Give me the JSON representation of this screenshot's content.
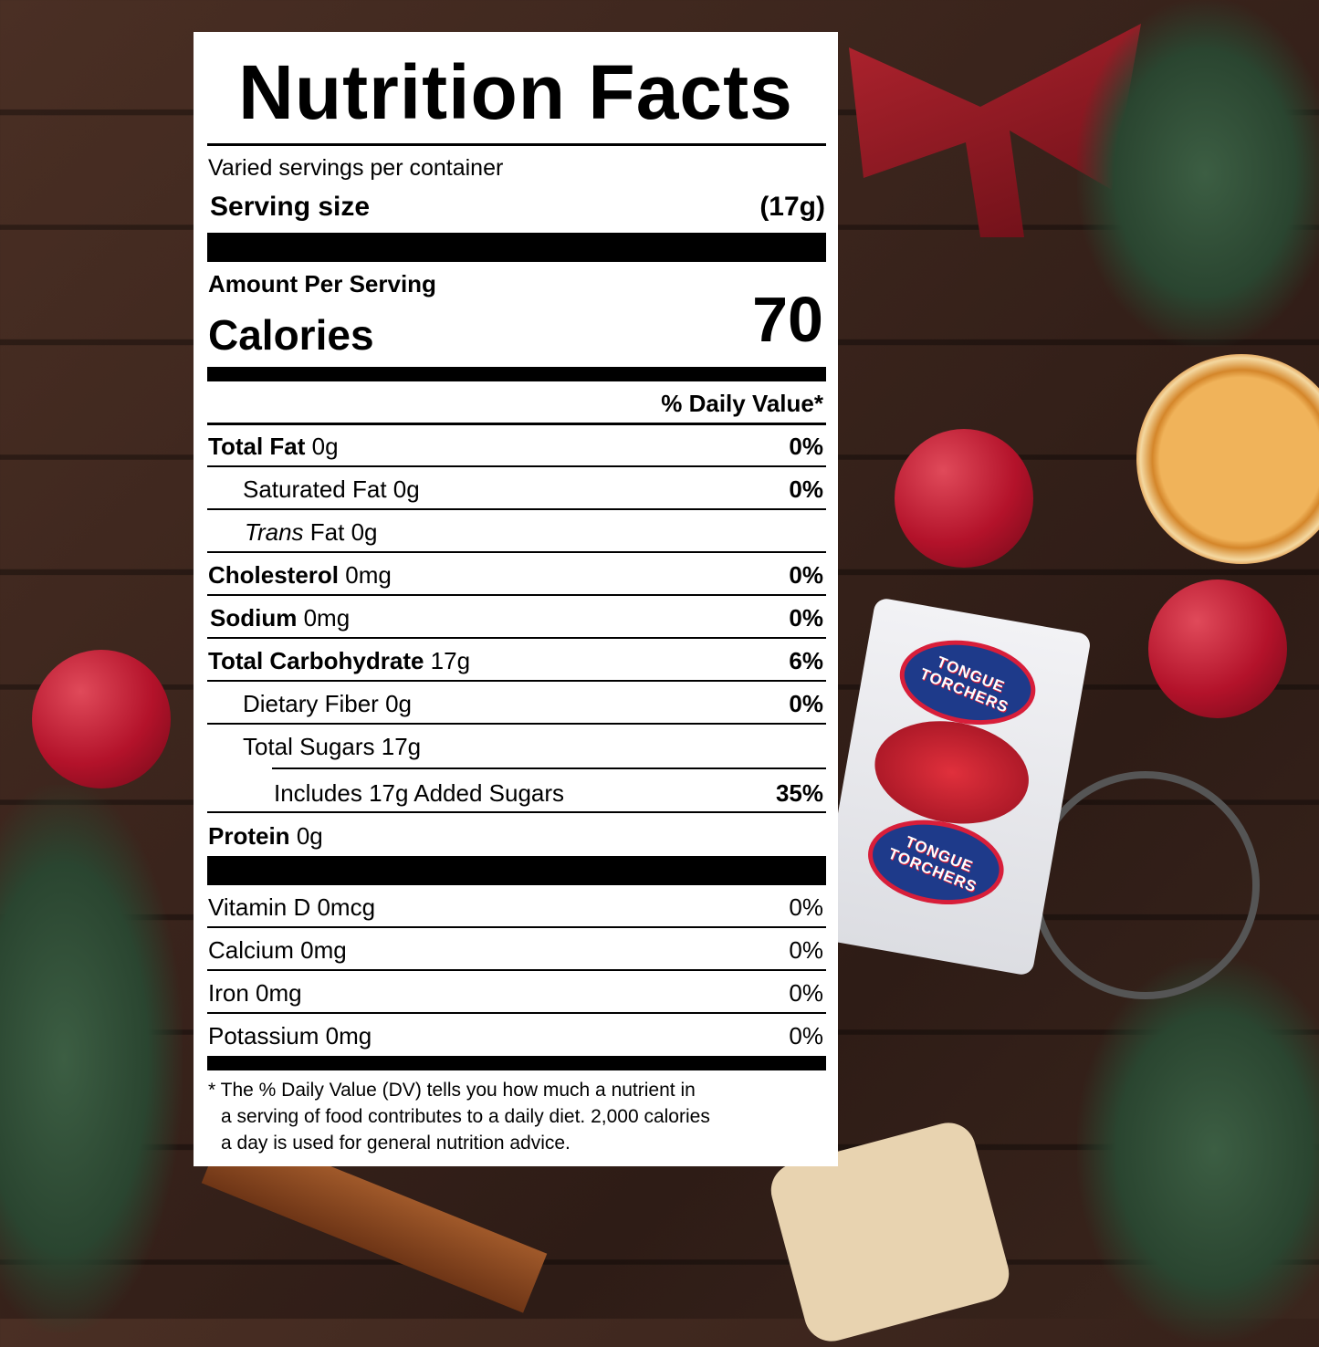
{
  "label": {
    "title": "Nutrition Facts",
    "servings": "Varied servings per container",
    "serving_size_label": "Serving size",
    "serving_size_value": "(17g)",
    "amount_per_serving": "Amount Per Serving",
    "calories_label": "Calories",
    "calories_value": "70",
    "dv_header": "% Daily Value*",
    "rows": [
      {
        "label": "Total Fat",
        "amount": "0g",
        "dv": "0%"
      },
      {
        "label": "Saturated Fat",
        "amount": "0g",
        "dv": "0%"
      },
      {
        "label_italic": "Trans",
        "label": "Fat",
        "amount": "0g",
        "dv": ""
      },
      {
        "label": "Cholesterol",
        "amount": "0mg",
        "dv": "0%"
      },
      {
        "label": "Sodium",
        "amount": "0mg",
        "dv": "0%"
      },
      {
        "label": "Total Carbohydrate",
        "amount": "17g",
        "dv": "6%"
      },
      {
        "label": "Dietary Fiber",
        "amount": "0g",
        "dv": "0%"
      },
      {
        "label": "Total Sugars",
        "amount": "17g",
        "dv": ""
      },
      {
        "label": "Includes 17g Added Sugars",
        "amount": "",
        "dv": "35%"
      },
      {
        "label": "Protein",
        "amount": "0g",
        "dv": ""
      },
      {
        "label": "Vitamin D",
        "amount": "0mcg",
        "dv": "0%"
      },
      {
        "label": "Calcium",
        "amount": "0mg",
        "dv": "0%"
      },
      {
        "label": "Iron",
        "amount": "0mg",
        "dv": "0%"
      },
      {
        "label": "Potassium",
        "amount": "0mg",
        "dv": "0%"
      }
    ],
    "footnote": [
      "* The % Daily Value (DV) tells you how much a nutrient in",
      "a serving of food contributes to a daily diet. 2,000 calories",
      "a day is used for general nutrition advice."
    ]
  },
  "product": {
    "brand_logo_text": "TONGUE TORCHERS"
  },
  "colors": {
    "background": "#3a241c",
    "label": "#ffffff",
    "text": "#000000"
  }
}
